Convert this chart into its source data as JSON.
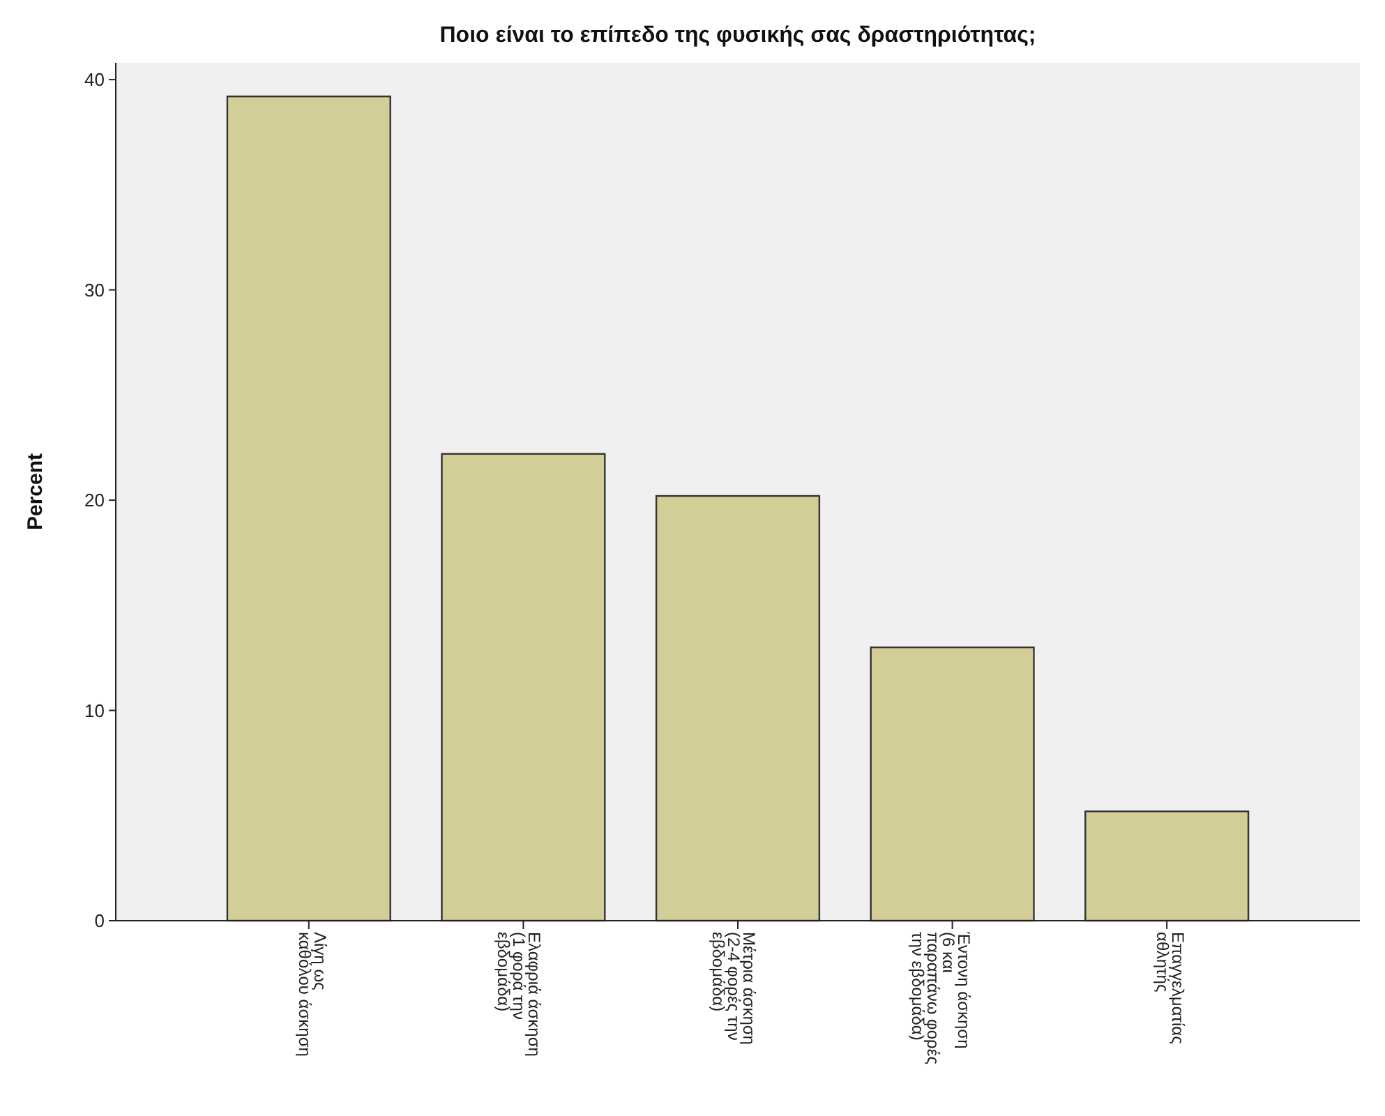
{
  "chart_data": {
    "type": "bar",
    "title": "Ποιο είναι το επίπεδο της φυσικής σας δραστηριότητας;",
    "ylabel": "Percent",
    "categories": [
      "Λίγη ως καθόλου άσκηση",
      "Ελαφριά άσκηση (1 φορά την εβδομάδα)",
      "Μέτρια άσκηση (2-4 φορές την εβδομάδα)",
      "Έντονη άσκηση (6 και παραπάνω φορές την εβδομάδα)",
      "Επαγγελματίας αθλητής"
    ],
    "values": [
      39.2,
      22.2,
      20.2,
      13.0,
      5.2
    ],
    "color": "#d3ce97",
    "ylim": [
      0,
      40.8
    ],
    "yticks": [
      0,
      10,
      20,
      30,
      40
    ],
    "grid": false
  }
}
